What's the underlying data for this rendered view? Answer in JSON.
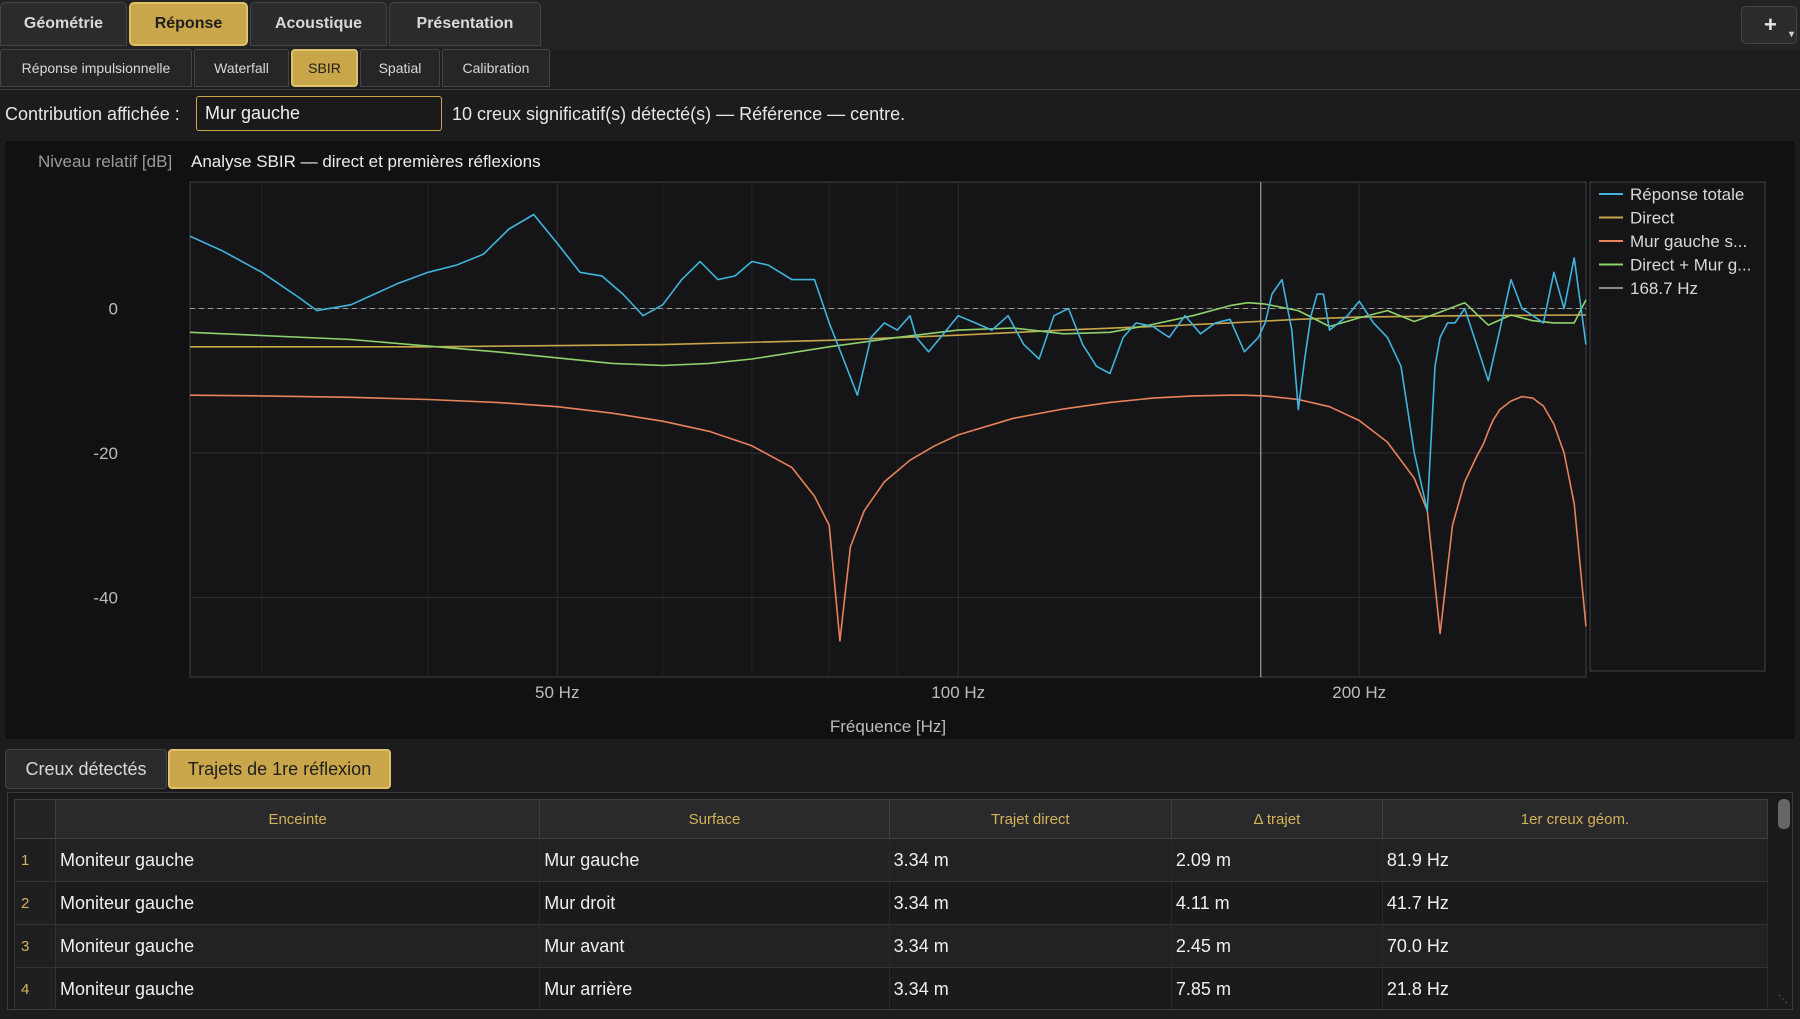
{
  "main_tabs": [
    {
      "label": "Géométrie",
      "active": false
    },
    {
      "label": "Réponse",
      "active": true
    },
    {
      "label": "Acoustique",
      "active": false
    },
    {
      "label": "Présentation",
      "active": false
    }
  ],
  "add_button": "+",
  "sub_tabs": [
    {
      "label": "Réponse impulsionnelle",
      "active": false
    },
    {
      "label": "Waterfall",
      "active": false
    },
    {
      "label": "SBIR",
      "active": true
    },
    {
      "label": "Spatial",
      "active": false
    },
    {
      "label": "Calibration",
      "active": false
    }
  ],
  "contribution": {
    "label": "Contribution affichée :",
    "selected": "Mur gauche",
    "status": "10 creux significatif(s) détecté(s) — Référence — centre."
  },
  "chart_data": {
    "type": "line",
    "title": "Analyse SBIR — direct et premières réflexions",
    "ylabel": "Niveau relatif [dB]",
    "xlabel": "Fréquence [Hz]",
    "x_scale": "log",
    "x_ticks": [
      {
        "value": 50,
        "label": "50 Hz"
      },
      {
        "value": 100,
        "label": "100 Hz"
      },
      {
        "value": 200,
        "label": "200 Hz"
      }
    ],
    "y_ticks": [
      {
        "value": 0,
        "label": "0"
      },
      {
        "value": -20,
        "label": "-20"
      },
      {
        "value": -40,
        "label": "-40"
      }
    ],
    "xlim": [
      26.5,
      296
    ],
    "ylim": [
      -51,
      17.5
    ],
    "cursor": {
      "freq": 168.7,
      "label": "168.7 Hz"
    },
    "reference_line_db": 0,
    "series": [
      {
        "name": "Réponse totale",
        "color": "#3fb4dc",
        "x": [
          26.5,
          28,
          30,
          32,
          33,
          35,
          38,
          40,
          42,
          44,
          46,
          48,
          50,
          52,
          54,
          56,
          58,
          60,
          62,
          64,
          66,
          68,
          70,
          72,
          75,
          78,
          80,
          82,
          84,
          86,
          88,
          90,
          92,
          93,
          95,
          97,
          100,
          103,
          106,
          109,
          112,
          115,
          118,
          121,
          124,
          127,
          130,
          133,
          136,
          140,
          144,
          148,
          152,
          156,
          160,
          164,
          168,
          170,
          172,
          175,
          178,
          180,
          182,
          184,
          186,
          188,
          190,
          193,
          196,
          200,
          205,
          210,
          215,
          220,
          225,
          228,
          230,
          233,
          236,
          240,
          245,
          250,
          255,
          260,
          265,
          270,
          275,
          280,
          285,
          290,
          296
        ],
        "y": [
          10,
          8,
          5,
          1.5,
          -0.3,
          0.5,
          3.5,
          5,
          6,
          7.5,
          11,
          13,
          9,
          5,
          4.5,
          2,
          -1,
          0.5,
          4,
          6.5,
          4,
          4.5,
          6.5,
          6,
          4,
          4,
          -2,
          -7,
          -12,
          -4,
          -2,
          -3,
          -1,
          -4,
          -6,
          -4,
          -1,
          -2,
          -3,
          -1,
          -5,
          -7,
          -1,
          0,
          -5,
          -8,
          -9,
          -4,
          -2,
          -2.5,
          -4,
          -1,
          -3.5,
          -2,
          -1.5,
          -6,
          -4,
          -2,
          2,
          4,
          -3,
          -14,
          -7,
          -1,
          2,
          2,
          -3,
          -2,
          -1,
          1,
          -2,
          -4,
          -8,
          -20,
          -28,
          -8,
          -4,
          -2,
          -2,
          0,
          -5,
          -10,
          -3,
          4,
          0,
          -1,
          -2,
          5,
          0,
          7,
          -5
        ]
      },
      {
        "name": "Direct",
        "color": "#c9a64a",
        "x": [
          26.5,
          40,
          60,
          80,
          100,
          120,
          140,
          160,
          180,
          200,
          240,
          296
        ],
        "y": [
          -5.3,
          -5.3,
          -5,
          -4.4,
          -3.7,
          -3,
          -2.5,
          -2,
          -1.5,
          -1.2,
          -1,
          -0.9
        ]
      },
      {
        "name": "Mur gauche s...",
        "color": "#e8825a",
        "x": [
          26.5,
          30,
          35,
          40,
          45,
          50,
          55,
          60,
          65,
          70,
          75,
          78,
          80,
          81.5,
          83,
          85,
          88,
          92,
          96,
          100,
          110,
          120,
          130,
          140,
          150,
          160,
          164,
          170,
          180,
          190,
          200,
          210,
          220,
          225,
          230,
          235,
          240,
          245,
          248,
          250,
          252,
          255,
          260,
          265,
          270,
          275,
          280,
          285,
          290,
          296
        ],
        "y": [
          -12,
          -12.1,
          -12.3,
          -12.6,
          -13,
          -13.6,
          -14.5,
          -15.6,
          -17,
          -19,
          -22,
          -26,
          -30,
          -46,
          -33,
          -28,
          -24,
          -21,
          -19,
          -17.5,
          -15.2,
          -13.9,
          -13,
          -12.4,
          -12.1,
          -12,
          -12,
          -12.1,
          -12.6,
          -13.6,
          -15.5,
          -18.5,
          -23.5,
          -28,
          -45,
          -30,
          -24,
          -20.5,
          -18.7,
          -17,
          -15.5,
          -14,
          -12.8,
          -12.2,
          -12.4,
          -13.5,
          -16,
          -20,
          -27,
          -44
        ]
      },
      {
        "name": "Direct + Mur g...",
        "color": "#8fd16a",
        "x": [
          26.5,
          35,
          45,
          55,
          60,
          65,
          70,
          80,
          90,
          100,
          110,
          120,
          130,
          140,
          150,
          160,
          165,
          170,
          180,
          190,
          200,
          210,
          220,
          230,
          240,
          250,
          260,
          270,
          280,
          290,
          296
        ],
        "y": [
          -3.3,
          -4.3,
          -6,
          -7.6,
          -7.9,
          -7.6,
          -7,
          -5.3,
          -4,
          -3,
          -2.7,
          -3.5,
          -3.3,
          -2.2,
          -1,
          0.4,
          0.8,
          0.6,
          -0.3,
          -2.5,
          -1.3,
          -0.3,
          -1.8,
          -0.5,
          0.8,
          -2.3,
          -0.9,
          -1.7,
          -2,
          -2,
          1.2
        ]
      }
    ],
    "legend": {
      "placement": "right",
      "items": [
        "Réponse totale",
        "Direct",
        "Mur gauche s...",
        "Direct + Mur g...",
        "168.7 Hz"
      ]
    }
  },
  "bottom_tabs": [
    {
      "label": "Creux détectés",
      "active": false
    },
    {
      "label": "Trajets de 1re réflexion",
      "active": true
    }
  ],
  "table": {
    "headers": [
      "Enceinte",
      "Surface",
      "Trajet direct",
      "Δ trajet",
      "1er creux géom."
    ],
    "rows": [
      {
        "num": "1",
        "cells": [
          "Moniteur gauche",
          "Mur gauche",
          "3.34 m",
          "2.09 m",
          "81.9 Hz"
        ]
      },
      {
        "num": "2",
        "cells": [
          "Moniteur gauche",
          "Mur droit",
          "3.34 m",
          "4.11 m",
          "41.7 Hz"
        ]
      },
      {
        "num": "3",
        "cells": [
          "Moniteur gauche",
          "Mur avant",
          "3.34 m",
          "2.45 m",
          "70.0 Hz"
        ]
      },
      {
        "num": "4",
        "cells": [
          "Moniteur gauche",
          "Mur arrière",
          "3.34 m",
          "7.85 m",
          "21.8 Hz"
        ]
      }
    ]
  }
}
